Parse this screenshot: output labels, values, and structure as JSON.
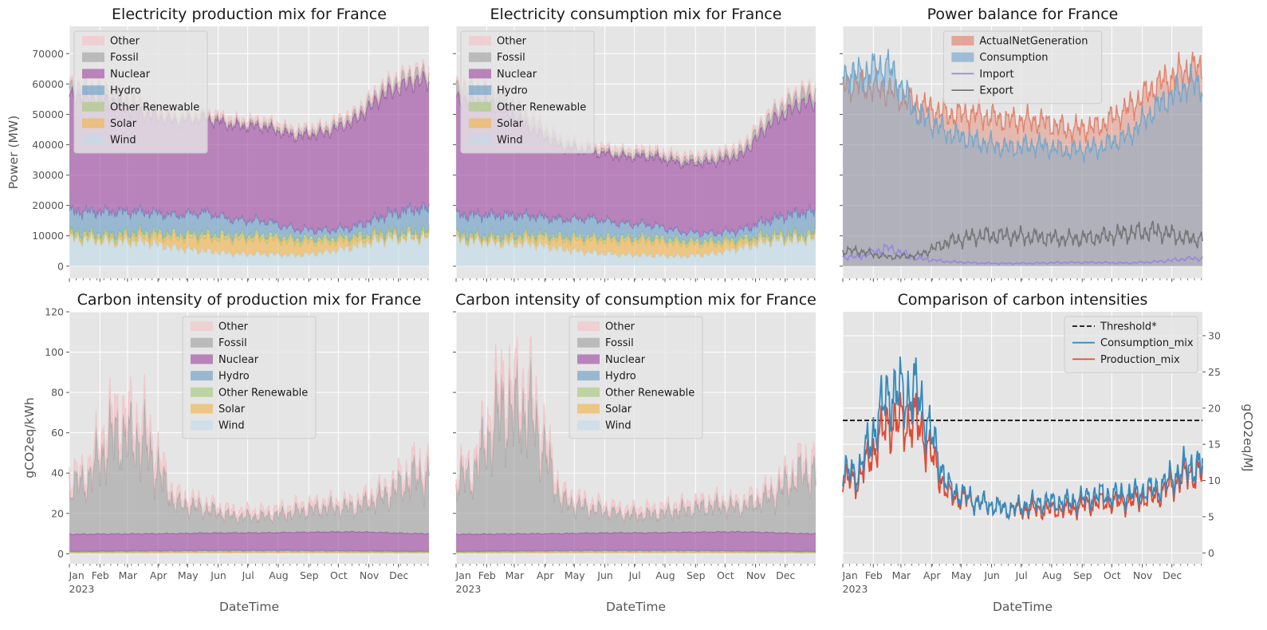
{
  "colors": {
    "Other": "#f2c4c8",
    "Fossil": "#a3a3a3",
    "Nuclear": "#9f4fa3",
    "Hydro": "#6f9fc8",
    "Other Renewable": "#a9c97e",
    "Solar": "#efb552",
    "Wind": "#c2dbe8",
    "ActualNetGeneration": "#e2836d",
    "Consumption": "#73a8cd",
    "Import": "#9988dd",
    "Export": "#777777",
    "Threshold*": "#111111",
    "Consumption_mix": "#348abd",
    "Production_mix": "#e24a33",
    "axes_bg": "#e5e5e5",
    "grid": "#ffffff"
  },
  "charts": [
    {
      "title": "Electricity production mix for France",
      "type": "area",
      "ylabel": "Power (MW)",
      "xlabel": "",
      "ylim": [
        -4000,
        79000
      ],
      "yticks": [
        0,
        10000,
        20000,
        30000,
        40000,
        50000,
        60000,
        70000
      ],
      "show_xticklabels": false,
      "show_yticklabels": true,
      "legend": [
        "Other",
        "Fossil",
        "Nuclear",
        "Hydro",
        "Other Renewable",
        "Solar",
        "Wind"
      ],
      "legend_position": "upper-left"
    },
    {
      "title": "Electricity consumption mix for France",
      "type": "area",
      "ylabel": "",
      "xlabel": "",
      "ylim": [
        -4000,
        79000
      ],
      "yticks": [
        0,
        10000,
        20000,
        30000,
        40000,
        50000,
        60000,
        70000
      ],
      "show_xticklabels": false,
      "show_yticklabels": false,
      "legend": [
        "Other",
        "Fossil",
        "Nuclear",
        "Hydro",
        "Other Renewable",
        "Solar",
        "Wind"
      ],
      "legend_position": "upper-left"
    },
    {
      "title": "Power balance for France",
      "type": "area+line",
      "ylabel": "",
      "xlabel": "",
      "ylim": [
        -4000,
        79000
      ],
      "yticks": [
        0,
        10000,
        20000,
        30000,
        40000,
        50000,
        60000,
        70000
      ],
      "show_xticklabels": false,
      "show_yticklabels": false,
      "legend": [
        "ActualNetGeneration",
        "Consumption",
        "Import",
        "Export"
      ],
      "legend_position": "upper-center"
    },
    {
      "title": "Carbon intensity of production mix for France",
      "type": "area",
      "ylabel": "gCO2eq/kWh",
      "xlabel": "DateTime",
      "ylim": [
        -5,
        120
      ],
      "yticks": [
        0,
        20,
        40,
        60,
        80,
        100,
        120
      ],
      "show_xticklabels": true,
      "show_yticklabels": true,
      "legend": [
        "Other",
        "Fossil",
        "Nuclear",
        "Hydro",
        "Other Renewable",
        "Solar",
        "Wind"
      ],
      "legend_position": "upper-center"
    },
    {
      "title": "Carbon intensity of consumption mix for France",
      "type": "area",
      "ylabel": "",
      "xlabel": "DateTime",
      "ylim": [
        -5,
        120
      ],
      "yticks": [
        0,
        20,
        40,
        60,
        80,
        100,
        120
      ],
      "show_xticklabels": true,
      "show_yticklabels": false,
      "legend": [
        "Other",
        "Fossil",
        "Nuclear",
        "Hydro",
        "Other Renewable",
        "Solar",
        "Wind"
      ],
      "legend_position": "upper-center"
    },
    {
      "title": "Comparison of carbon intensities",
      "type": "line",
      "ylabel": "gCO2eq/MJ",
      "ylabel_side": "right",
      "xlabel": "DateTime",
      "ylim": [
        -1.5,
        33.3
      ],
      "yticks": [
        0,
        5,
        10,
        15,
        20,
        25,
        30
      ],
      "show_xticklabels": true,
      "show_yticklabels": true,
      "legend": [
        "Threshold*",
        "Consumption_mix",
        "Production_mix"
      ],
      "legend_position": "upper-right",
      "threshold": 18.3
    }
  ],
  "months": [
    "Jan",
    "Feb",
    "Mar",
    "Apr",
    "May",
    "Jun",
    "Jul",
    "Aug",
    "Sep",
    "Oct",
    "Nov",
    "Dec"
  ],
  "year_label": "2023",
  "chart_data": [
    {
      "type": "area",
      "title": "Electricity production mix for France",
      "x": [
        "2023-01",
        "2023-02",
        "2023-03",
        "2023-04",
        "2023-05",
        "2023-06",
        "2023-07",
        "2023-08",
        "2023-09",
        "2023-10",
        "2023-11",
        "2023-12"
      ],
      "series": [
        {
          "name": "Wind",
          "values": [
            9000,
            8000,
            8000,
            6000,
            5000,
            4000,
            4000,
            3500,
            4500,
            6500,
            9000,
            9500
          ]
        },
        {
          "name": "Solar",
          "values": [
            700,
            1200,
            2200,
            3500,
            4500,
            5000,
            5200,
            4500,
            3500,
            2200,
            1000,
            600
          ]
        },
        {
          "name": "Other Renewable",
          "values": [
            1200,
            1200,
            1200,
            1200,
            1200,
            1200,
            1200,
            1200,
            1200,
            1200,
            1200,
            1200
          ]
        },
        {
          "name": "Hydro",
          "values": [
            7000,
            7500,
            6500,
            6000,
            7000,
            5000,
            4500,
            3000,
            2500,
            3000,
            5500,
            7500
          ]
        },
        {
          "name": "Nuclear",
          "values": [
            38000,
            36000,
            32000,
            31000,
            31000,
            31000,
            31000,
            30500,
            32000,
            35000,
            40000,
            42000
          ]
        },
        {
          "name": "Fossil",
          "values": [
            3000,
            3000,
            2500,
            1200,
            900,
            900,
            1000,
            1200,
            1300,
            1500,
            2000,
            2500
          ]
        },
        {
          "name": "Other",
          "values": [
            1500,
            1500,
            1500,
            1300,
            1300,
            1300,
            1300,
            1300,
            1300,
            1500,
            1500,
            1500
          ]
        }
      ],
      "ylabel": "Power (MW)",
      "ylim": [
        -4000,
        79000
      ]
    },
    {
      "type": "area",
      "title": "Electricity consumption mix for France",
      "x": [
        "2023-01",
        "2023-02",
        "2023-03",
        "2023-04",
        "2023-05",
        "2023-06",
        "2023-07",
        "2023-08",
        "2023-09",
        "2023-10",
        "2023-11",
        "2023-12"
      ],
      "series": [
        {
          "name": "Wind",
          "values": [
            8500,
            7500,
            7500,
            5500,
            4500,
            3700,
            3600,
            3200,
            4000,
            6000,
            8500,
            9000
          ]
        },
        {
          "name": "Solar",
          "values": [
            700,
            1100,
            2000,
            3200,
            4200,
            4700,
            4900,
            4200,
            3300,
            2000,
            900,
            600
          ]
        },
        {
          "name": "Other Renewable",
          "values": [
            1100,
            1100,
            1100,
            1100,
            1100,
            1100,
            1100,
            1100,
            1100,
            1100,
            1100,
            1100
          ]
        },
        {
          "name": "Hydro",
          "values": [
            6500,
            7000,
            6000,
            5500,
            6000,
            4500,
            4000,
            2800,
            2300,
            2800,
            5000,
            7000
          ]
        },
        {
          "name": "Nuclear",
          "values": [
            38000,
            36000,
            28500,
            24000,
            22000,
            22000,
            22500,
            22500,
            23500,
            24500,
            32000,
            36000
          ]
        },
        {
          "name": "Fossil",
          "values": [
            4000,
            4000,
            3200,
            1500,
            1000,
            1000,
            1100,
            1300,
            1400,
            1700,
            2500,
            3200
          ]
        },
        {
          "name": "Other",
          "values": [
            1500,
            1500,
            1500,
            1300,
            1300,
            1300,
            1300,
            1300,
            1300,
            1500,
            1500,
            1500
          ]
        }
      ],
      "ylabel": "",
      "ylim": [
        -4000,
        79000
      ]
    },
    {
      "type": "area",
      "title": "Power balance for France",
      "x": [
        "2023-01",
        "2023-02",
        "2023-03",
        "2023-04",
        "2023-05",
        "2023-06",
        "2023-07",
        "2023-08",
        "2023-09",
        "2023-10",
        "2023-11",
        "2023-12"
      ],
      "series": [
        {
          "name": "ActualNetGeneration",
          "values": [
            60000,
            58000,
            53000,
            50000,
            50000,
            48000,
            48000,
            45000,
            46000,
            52000,
            60000,
            65000
          ]
        },
        {
          "name": "Consumption",
          "values": [
            63000,
            66000,
            50000,
            44000,
            41000,
            39000,
            40000,
            38000,
            39000,
            43000,
            53000,
            60000
          ]
        },
        {
          "name": "Import",
          "values": [
            3000,
            6000,
            2500,
            1500,
            1000,
            900,
            1000,
            1200,
            1200,
            1000,
            1500,
            2500
          ]
        },
        {
          "name": "Export",
          "values": [
            5000,
            3000,
            3500,
            8000,
            10000,
            10000,
            9500,
            9000,
            9500,
            11000,
            11500,
            9000
          ]
        }
      ],
      "ylabel": "",
      "ylim": [
        -4000,
        79000
      ]
    },
    {
      "type": "area",
      "title": "Carbon intensity of production mix for France",
      "x": [
        "2023-01",
        "2023-02",
        "2023-03",
        "2023-04",
        "2023-05",
        "2023-06",
        "2023-07",
        "2023-08",
        "2023-09",
        "2023-10",
        "2023-11",
        "2023-12"
      ],
      "series": [
        {
          "name": "Wind",
          "values": [
            0.3,
            0.3,
            0.3,
            0.3,
            0.3,
            0.3,
            0.3,
            0.3,
            0.3,
            0.3,
            0.3,
            0.3
          ]
        },
        {
          "name": "Solar",
          "values": [
            0.2,
            0.3,
            0.4,
            0.5,
            0.6,
            0.6,
            0.6,
            0.6,
            0.5,
            0.4,
            0.3,
            0.2
          ]
        },
        {
          "name": "Other Renewable",
          "values": [
            0.4,
            0.4,
            0.4,
            0.4,
            0.4,
            0.4,
            0.4,
            0.4,
            0.4,
            0.4,
            0.4,
            0.4
          ]
        },
        {
          "name": "Hydro",
          "values": [
            0.3,
            0.3,
            0.3,
            0.3,
            0.3,
            0.3,
            0.3,
            0.3,
            0.3,
            0.3,
            0.3,
            0.3
          ]
        },
        {
          "name": "Nuclear",
          "values": [
            8.5,
            8.5,
            8.5,
            8.5,
            8.7,
            8.8,
            8.8,
            9.0,
            9.3,
            9.5,
            9.2,
            8.8
          ]
        },
        {
          "name": "Fossil",
          "values": [
            25,
            50,
            45,
            15,
            12,
            8,
            8,
            10,
            12,
            12,
            18,
            28
          ]
        },
        {
          "name": "Other",
          "values": [
            5,
            10,
            10,
            4,
            3,
            3,
            3,
            3,
            3,
            3,
            4,
            6
          ]
        }
      ],
      "ylabel": "gCO2eq/kWh",
      "xlabel": "DateTime",
      "ylim": [
        -5,
        120
      ]
    },
    {
      "type": "area",
      "title": "Carbon intensity of consumption mix for France",
      "x": [
        "2023-01",
        "2023-02",
        "2023-03",
        "2023-04",
        "2023-05",
        "2023-06",
        "2023-07",
        "2023-08",
        "2023-09",
        "2023-10",
        "2023-11",
        "2023-12"
      ],
      "series": [
        {
          "name": "Wind",
          "values": [
            0.3,
            0.3,
            0.3,
            0.3,
            0.3,
            0.3,
            0.3,
            0.3,
            0.3,
            0.3,
            0.3,
            0.3
          ]
        },
        {
          "name": "Solar",
          "values": [
            0.2,
            0.3,
            0.4,
            0.5,
            0.6,
            0.6,
            0.6,
            0.6,
            0.5,
            0.4,
            0.3,
            0.2
          ]
        },
        {
          "name": "Other Renewable",
          "values": [
            0.4,
            0.4,
            0.4,
            0.4,
            0.4,
            0.4,
            0.4,
            0.4,
            0.4,
            0.4,
            0.4,
            0.4
          ]
        },
        {
          "name": "Hydro",
          "values": [
            0.3,
            0.3,
            0.3,
            0.3,
            0.3,
            0.3,
            0.3,
            0.3,
            0.3,
            0.3,
            0.3,
            0.3
          ]
        },
        {
          "name": "Nuclear",
          "values": [
            8.5,
            8.5,
            8.5,
            8.5,
            8.7,
            8.8,
            8.8,
            9.0,
            9.3,
            9.5,
            9.2,
            8.8
          ]
        },
        {
          "name": "Fossil",
          "values": [
            28,
            62,
            60,
            16,
            12,
            9,
            9,
            11,
            13,
            12,
            18,
            30
          ]
        },
        {
          "name": "Other",
          "values": [
            5,
            12,
            12,
            4,
            3,
            3,
            3,
            3,
            3,
            3,
            4,
            6
          ]
        }
      ],
      "ylabel": "",
      "xlabel": "DateTime",
      "ylim": [
        -5,
        120
      ]
    },
    {
      "type": "line",
      "title": "Comparison of carbon intensities",
      "x": [
        "2023-01",
        "2023-02",
        "2023-03",
        "2023-04",
        "2023-05",
        "2023-06",
        "2023-07",
        "2023-08",
        "2023-09",
        "2023-10",
        "2023-11",
        "2023-12"
      ],
      "series": [
        {
          "name": "Threshold*",
          "values": [
            18.3,
            18.3,
            18.3,
            18.3,
            18.3,
            18.3,
            18.3,
            18.3,
            18.3,
            18.3,
            18.3,
            18.3
          ]
        },
        {
          "name": "Consumption_mix",
          "values": [
            11,
            22,
            22,
            9,
            7,
            6,
            7,
            7,
            8,
            8,
            9,
            12
          ]
        },
        {
          "name": "Production_mix",
          "values": [
            10,
            18,
            18,
            8,
            7,
            6,
            6,
            6,
            7,
            7,
            8,
            11
          ]
        }
      ],
      "ylabel": "gCO2eq/MJ",
      "xlabel": "DateTime",
      "ylim": [
        -1.5,
        33.3
      ]
    }
  ]
}
